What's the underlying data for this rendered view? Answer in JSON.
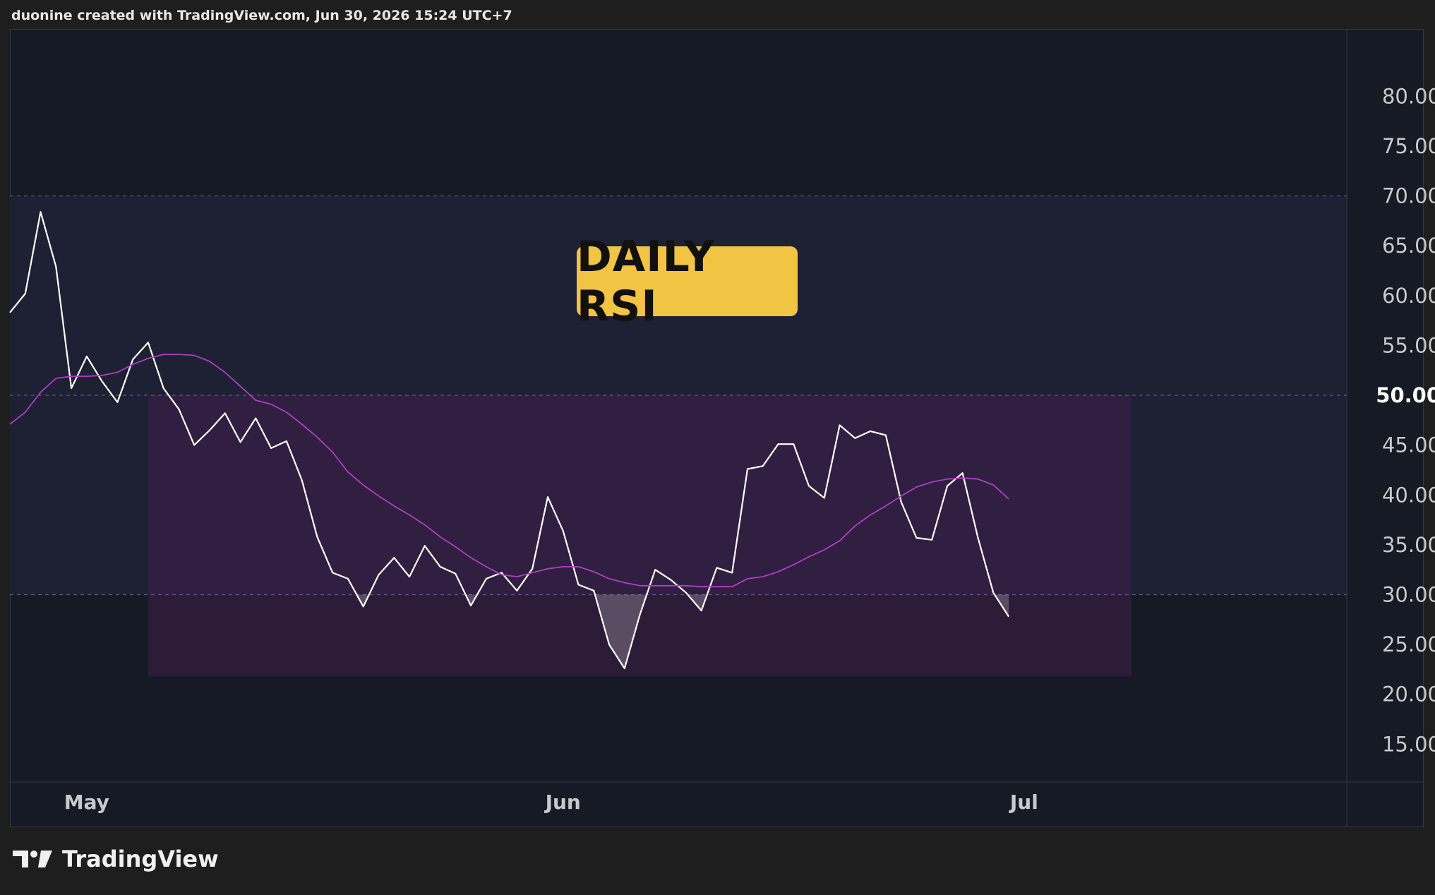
{
  "header": {
    "text": "duonine created with TradingView.com, Jun 30, 2026 15:24 UTC+7"
  },
  "title_badge": {
    "text": "DAILY RSI",
    "color": "#f2c443"
  },
  "footer": {
    "brand": "TradingView"
  },
  "colors": {
    "background": "#151a24",
    "band": "#1e2033",
    "highlight_zone": "#4a1f52",
    "rsi_line": "#ffffff",
    "ma_line": "#b03cc4",
    "title_badge": "#f2c443"
  },
  "chart_data": {
    "type": "line",
    "title": "DAILY RSI",
    "ylim": [
      11.2,
      86.75
    ],
    "y_ticks": [
      "80.00",
      "75.00",
      "70.00",
      "65.00",
      "60.00",
      "55.00",
      "50.00",
      "45.00",
      "40.00",
      "35.00",
      "30.00",
      "25.00",
      "20.00",
      "15.00"
    ],
    "y_tick_values": [
      80,
      75,
      70,
      65,
      60,
      55,
      50,
      45,
      40,
      35,
      30,
      25,
      20,
      15
    ],
    "x_ticks": [
      "May",
      "Jun",
      "Jul"
    ],
    "x_tick_dates": [
      "2026-05-01",
      "2026-06-01",
      "2026-07-01"
    ],
    "x_range": [
      "2026-04-26",
      "2026-07-22"
    ],
    "levels": [
      70,
      50,
      30
    ],
    "band": [
      30,
      70
    ],
    "highlight_zone": {
      "from": "2026-05-05",
      "to": "2026-07-08",
      "y": [
        21.8,
        50
      ]
    },
    "grid": false,
    "series": [
      {
        "color": "#ffffff",
        "x": [
          "2026-04-26",
          "2026-04-27",
          "2026-04-28",
          "2026-04-29",
          "2026-04-30",
          "2026-05-01",
          "2026-05-02",
          "2026-05-03",
          "2026-05-04",
          "2026-05-05",
          "2026-05-06",
          "2026-05-07",
          "2026-05-08",
          "2026-05-09",
          "2026-05-10",
          "2026-05-11",
          "2026-05-12",
          "2026-05-13",
          "2026-05-14",
          "2026-05-15",
          "2026-05-16",
          "2026-05-17",
          "2026-05-18",
          "2026-05-19",
          "2026-05-20",
          "2026-05-21",
          "2026-05-22",
          "2026-05-23",
          "2026-05-24",
          "2026-05-25",
          "2026-05-26",
          "2026-05-27",
          "2026-05-28",
          "2026-05-29",
          "2026-05-30",
          "2026-05-31",
          "2026-06-01",
          "2026-06-02",
          "2026-06-03",
          "2026-06-04",
          "2026-06-05",
          "2026-06-06",
          "2026-06-07",
          "2026-06-08",
          "2026-06-09",
          "2026-06-10",
          "2026-06-11",
          "2026-06-12",
          "2026-06-13",
          "2026-06-14",
          "2026-06-15",
          "2026-06-16",
          "2026-06-17",
          "2026-06-18",
          "2026-06-19",
          "2026-06-20",
          "2026-06-21",
          "2026-06-22",
          "2026-06-23",
          "2026-06-24",
          "2026-06-25",
          "2026-06-26",
          "2026-06-27",
          "2026-06-28",
          "2026-06-29",
          "2026-06-30"
        ],
        "values": [
          58.3,
          60.2,
          68.4,
          62.9,
          50.7,
          53.9,
          51.4,
          49.3,
          53.6,
          55.3,
          50.7,
          48.6,
          45.0,
          46.5,
          48.2,
          45.3,
          47.7,
          44.7,
          45.4,
          41.5,
          35.8,
          32.2,
          31.6,
          28.8,
          32.0,
          33.7,
          31.8,
          34.9,
          32.8,
          32.1,
          28.9,
          31.6,
          32.2,
          30.4,
          32.6,
          39.8,
          36.4,
          31.0,
          30.4,
          25.0,
          22.6,
          28.0,
          32.5,
          31.5,
          30.2,
          28.4,
          32.7,
          32.2,
          42.6,
          42.9,
          45.1,
          45.1,
          40.9,
          39.7,
          47.0,
          45.7,
          46.4,
          46.0,
          39.3,
          35.7,
          35.5,
          40.9,
          42.2,
          35.7,
          30.2,
          27.8
        ]
      },
      {
        "color": "#b03cc4",
        "x": [
          "2026-04-26",
          "2026-04-27",
          "2026-04-28",
          "2026-04-29",
          "2026-04-30",
          "2026-05-01",
          "2026-05-02",
          "2026-05-03",
          "2026-05-04",
          "2026-05-05",
          "2026-05-06",
          "2026-05-07",
          "2026-05-08",
          "2026-05-09",
          "2026-05-10",
          "2026-05-11",
          "2026-05-12",
          "2026-05-13",
          "2026-05-14",
          "2026-05-15",
          "2026-05-16",
          "2026-05-17",
          "2026-05-18",
          "2026-05-19",
          "2026-05-20",
          "2026-05-21",
          "2026-05-22",
          "2026-05-23",
          "2026-05-24",
          "2026-05-25",
          "2026-05-26",
          "2026-05-27",
          "2026-05-28",
          "2026-05-29",
          "2026-05-30",
          "2026-05-31",
          "2026-06-01",
          "2026-06-02",
          "2026-06-03",
          "2026-06-04",
          "2026-06-05",
          "2026-06-06",
          "2026-06-07",
          "2026-06-08",
          "2026-06-09",
          "2026-06-10",
          "2026-06-11",
          "2026-06-12",
          "2026-06-13",
          "2026-06-14",
          "2026-06-15",
          "2026-06-16",
          "2026-06-17",
          "2026-06-18",
          "2026-06-19",
          "2026-06-20",
          "2026-06-21",
          "2026-06-22",
          "2026-06-23",
          "2026-06-24",
          "2026-06-25",
          "2026-06-26",
          "2026-06-27",
          "2026-06-28",
          "2026-06-29",
          "2026-06-30"
        ],
        "values": [
          47.1,
          48.3,
          50.3,
          51.7,
          51.9,
          51.9,
          52.0,
          52.3,
          53.1,
          53.7,
          54.1,
          54.1,
          54.0,
          53.4,
          52.3,
          50.9,
          49.5,
          49.1,
          48.3,
          47.1,
          45.8,
          44.3,
          42.3,
          41.0,
          39.9,
          38.9,
          38.0,
          37.0,
          35.8,
          34.8,
          33.7,
          32.8,
          32.0,
          31.8,
          32.2,
          32.6,
          32.8,
          32.8,
          32.3,
          31.6,
          31.2,
          30.9,
          30.9,
          30.9,
          30.9,
          30.8,
          30.8,
          30.8,
          31.6,
          31.8,
          32.3,
          33.0,
          33.8,
          34.5,
          35.4,
          36.9,
          38.0,
          38.9,
          39.9,
          40.8,
          41.3,
          41.6,
          41.7,
          41.6,
          41.0,
          39.6
        ]
      }
    ]
  }
}
